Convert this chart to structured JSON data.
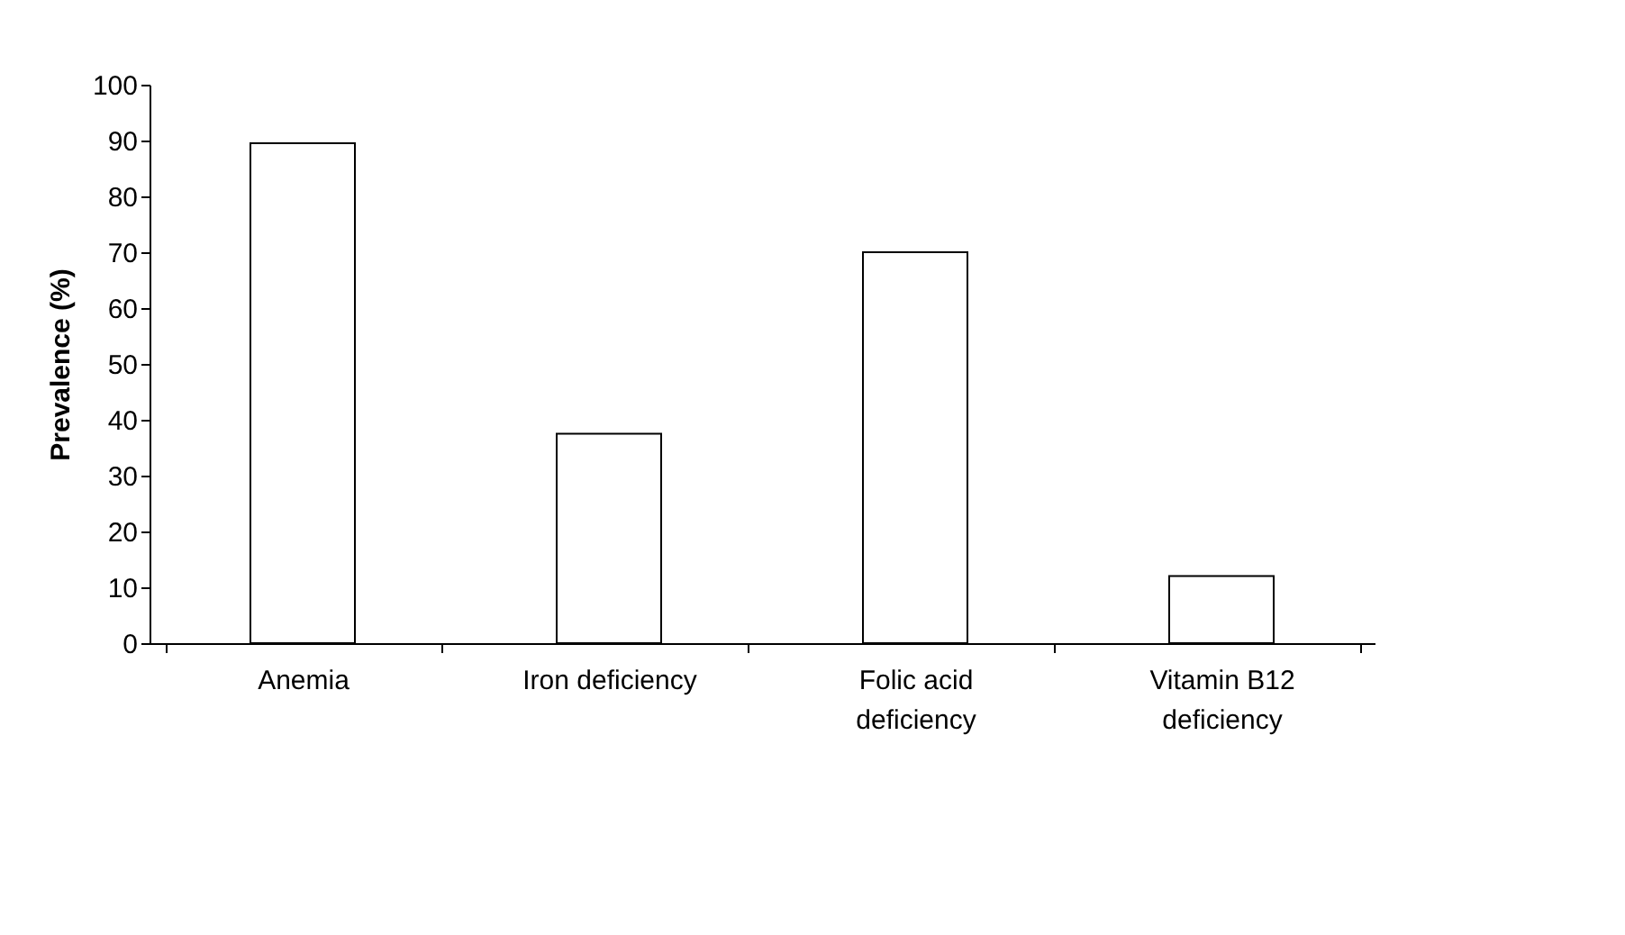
{
  "chart_data": {
    "type": "bar",
    "ylabel": "Prevalence (%)",
    "categories": [
      "Anemia",
      "Iron deficiency",
      "Folic acid deficiency",
      "Vitamin B12 deficiency"
    ],
    "values": [
      89.5,
      37.5,
      70,
      12
    ],
    "color": "#ffffff",
    "ylim": [
      0,
      100
    ],
    "yticks": [
      0,
      10,
      20,
      30,
      40,
      50,
      60,
      70,
      80,
      90,
      100
    ],
    "grid": false
  }
}
